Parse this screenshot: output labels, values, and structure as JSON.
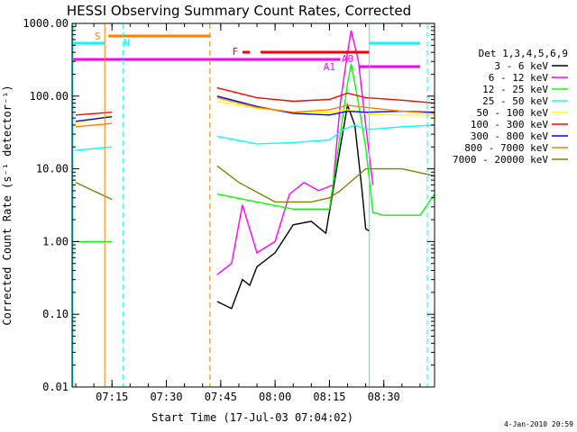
{
  "chart_data": {
    "type": "line",
    "title": "HESSI Observing Summary Count Rates, Corrected",
    "xlabel": "Start Time (17-Jul-03 07:04:02)",
    "ylabel": "Corrected Count Rate (s⁻¹ detector⁻¹)",
    "y_scale": "log",
    "ylim": [
      0.01,
      1000
    ],
    "xlim": [
      "07:04",
      "08:44"
    ],
    "x_ticks": [
      "07:15",
      "07:30",
      "07:45",
      "08:00",
      "08:15",
      "08:30"
    ],
    "y_ticks": [
      "0.01",
      "0.10",
      "1.00",
      "10.00",
      "100.00",
      "1000.00"
    ],
    "grid": false,
    "legend_header": "Det 1,3,4,5,6,9",
    "legend_position": "right",
    "series": [
      {
        "name": "3 - 6 keV",
        "color": "#000000",
        "x": [
          "07:44",
          "07:48",
          "07:51",
          "07:53",
          "07:55",
          "08:00",
          "08:05",
          "08:10",
          "08:14",
          "08:18",
          "08:20",
          "08:22",
          "08:24",
          "08:25",
          "08:26"
        ],
        "y": [
          0.15,
          0.12,
          0.3,
          0.25,
          0.45,
          0.7,
          1.7,
          1.9,
          1.3,
          20,
          75,
          40,
          5,
          1.5,
          1.4
        ]
      },
      {
        "name": "6 - 12 keV",
        "color": "#ff00ff",
        "x": [
          "07:44",
          "07:48",
          "07:51",
          "07:55",
          "08:00",
          "08:04",
          "08:08",
          "08:12",
          "08:16",
          "08:18",
          "08:20",
          "08:21",
          "08:23",
          "08:25",
          "08:27"
        ],
        "y": [
          0.35,
          0.5,
          3.2,
          0.7,
          1.0,
          4.5,
          6.5,
          5.0,
          6.0,
          80,
          400,
          800,
          300,
          40,
          6
        ]
      },
      {
        "name": "12 - 25 keV",
        "color": "#00ff00",
        "x": [
          "07:05",
          "07:15",
          "07:44",
          "07:55",
          "08:05",
          "08:15",
          "08:18",
          "08:20",
          "08:21",
          "08:23",
          "08:25",
          "08:27",
          "08:30",
          "08:40",
          "08:44"
        ],
        "y": [
          1.0,
          1.0,
          4.5,
          3.5,
          2.8,
          2.8,
          30,
          150,
          280,
          80,
          20,
          2.5,
          2.3,
          2.3,
          4.5
        ]
      },
      {
        "name": "25 - 50 keV",
        "color": "#00ffff",
        "x": [
          "07:05",
          "07:15",
          "07:44",
          "07:55",
          "08:05",
          "08:15",
          "08:19",
          "08:22",
          "08:25",
          "08:27",
          "08:35",
          "08:44"
        ],
        "y": [
          18,
          20,
          28,
          22,
          23,
          25,
          35,
          40,
          35,
          35,
          38,
          40
        ]
      },
      {
        "name": "50 - 100 keV",
        "color": "#ffff00",
        "x": [
          "07:05",
          "07:15",
          "07:44",
          "07:55",
          "08:05",
          "08:15",
          "08:20",
          "08:25",
          "08:35",
          "08:44"
        ],
        "y": [
          42,
          55,
          85,
          68,
          60,
          60,
          65,
          58,
          55,
          55
        ]
      },
      {
        "name": "100 - 300 keV",
        "color": "#ff0000",
        "x": [
          "07:05",
          "07:15",
          "07:44",
          "07:55",
          "08:05",
          "08:15",
          "08:20",
          "08:25",
          "08:35",
          "08:44"
        ],
        "y": [
          55,
          60,
          130,
          95,
          85,
          90,
          110,
          95,
          88,
          80
        ]
      },
      {
        "name": "300 - 800 keV",
        "color": "#0000ff",
        "x": [
          "07:05",
          "07:15",
          "07:44",
          "07:55",
          "08:05",
          "08:15",
          "08:20",
          "08:25",
          "08:35",
          "08:44"
        ],
        "y": [
          45,
          52,
          100,
          72,
          58,
          55,
          62,
          60,
          62,
          60
        ]
      },
      {
        "name": "800 - 7000 keV",
        "color": "#ff8000",
        "x": [
          "07:05",
          "07:15",
          "07:44",
          "07:55",
          "08:05",
          "08:15",
          "08:20",
          "08:25",
          "08:35",
          "08:44"
        ],
        "y": [
          38,
          42,
          95,
          70,
          60,
          65,
          75,
          70,
          62,
          58
        ]
      },
      {
        "name": "7000 - 20000 keV",
        "color": "#808000",
        "x": [
          "07:05",
          "07:15",
          "07:44",
          "07:50",
          "08:00",
          "08:10",
          "08:15",
          "08:18",
          "08:25",
          "08:35",
          "08:44"
        ],
        "y": [
          6.5,
          3.8,
          11,
          6.5,
          3.5,
          3.5,
          4,
          5,
          10,
          10,
          8
        ]
      }
    ],
    "annotations": [
      {
        "label": "S",
        "color": "#ff8000"
      },
      {
        "label": "N",
        "color": "#00ffff"
      },
      {
        "label": "F",
        "color": "#ff0000"
      },
      {
        "label": "A1",
        "color": "#ff00ff"
      },
      {
        "label": "A0",
        "color": "#ff00ff"
      }
    ]
  },
  "footer_date": "4-Jan-2010 20:59"
}
